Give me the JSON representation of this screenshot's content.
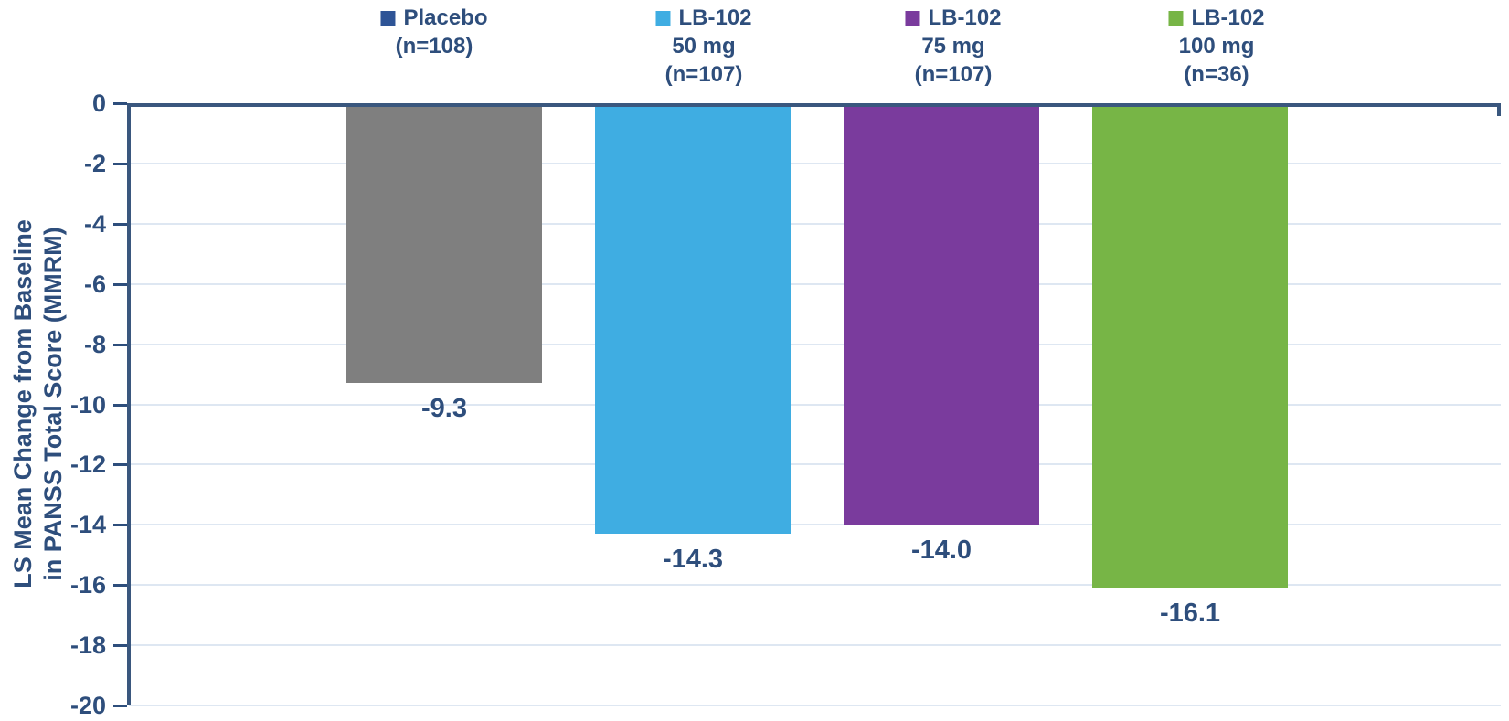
{
  "legend": {
    "items": [
      {
        "swatch_color": "#2E5496",
        "lines": [
          "Placebo",
          "(n=108)"
        ]
      },
      {
        "swatch_color": "#3FADE2",
        "lines": [
          "LB-102",
          "50 mg",
          "(n=107)"
        ]
      },
      {
        "swatch_color": "#7A3B9D",
        "lines": [
          "LB-102",
          "75 mg",
          "(n=107)"
        ]
      },
      {
        "swatch_color": "#77B546",
        "lines": [
          "LB-102",
          "100 mg",
          "(n=36)"
        ]
      }
    ]
  },
  "chart_data": {
    "type": "bar",
    "title": "",
    "categories": [
      "Placebo (n=108)",
      "LB-102 50 mg (n=107)",
      "LB-102 75 mg (n=107)",
      "LB-102 100 mg (n=36)"
    ],
    "values": [
      -9.3,
      -14.3,
      -14.0,
      -16.1
    ],
    "data_labels": [
      "-9.3",
      "-14.3",
      "-14.0",
      "-16.1"
    ],
    "bar_colors": [
      "#7F7F7F",
      "#3FADE2",
      "#7A3B9D",
      "#77B546"
    ],
    "ylabel_line1": "LS Mean Change from Baseline",
    "ylabel_line2": "in PANSS Total Score (MMRM)",
    "ylim": [
      -20,
      0
    ],
    "ytick_interval": 2,
    "yticks": [
      0,
      -2,
      -4,
      -6,
      -8,
      -10,
      -12,
      -14,
      -16,
      -18,
      -20
    ],
    "grid": true,
    "legend_position": "top",
    "axis_color": "#3A577E",
    "gridline_color": "#DEE7F2",
    "text_color": "#2E4E7C"
  }
}
